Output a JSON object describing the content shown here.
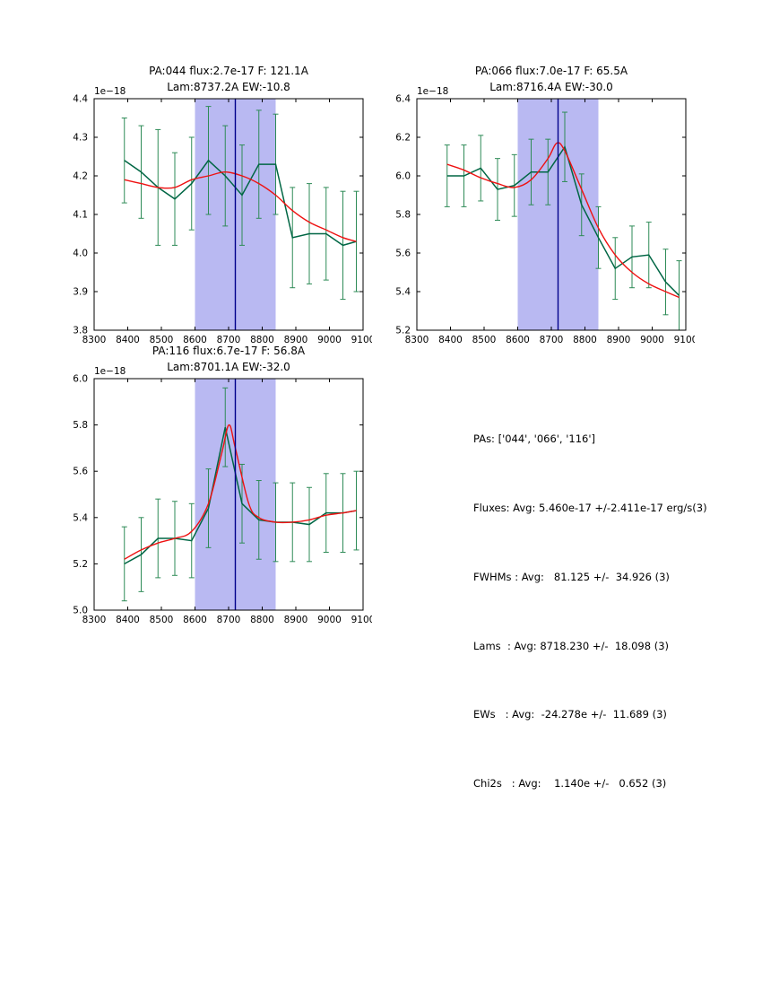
{
  "colors": {
    "background": "#ffffff",
    "data_line": "#006644",
    "error_bar": "#2e8b57",
    "fit_line": "#ee1111",
    "band": "#b9b9f2",
    "vline": "#00008b",
    "axis": "#000000"
  },
  "chart_data": [
    {
      "type": "line",
      "title_line1": "PA:044 flux:2.7e-17 F: 121.1A",
      "title_line2": "Lam:8737.2A EW:-10.8",
      "offset_label": "1e−18",
      "xlim": [
        8300,
        9100
      ],
      "ylim": [
        3.8,
        4.4
      ],
      "xticks": [
        "8300",
        "8400",
        "8500",
        "8600",
        "8700",
        "8800",
        "8900",
        "9000",
        "9100"
      ],
      "yticks": [
        "3.8",
        "3.9",
        "4.0",
        "4.1",
        "4.2",
        "4.3",
        "4.4"
      ],
      "band": [
        8600,
        8840
      ],
      "vline": 8720,
      "series": [
        {
          "name": "spectrum-data",
          "x": [
            8390,
            8440,
            8490,
            8540,
            8590,
            8640,
            8690,
            8740,
            8790,
            8840,
            8890,
            8940,
            8990,
            9040,
            9080
          ],
          "y": [
            4.24,
            4.21,
            4.17,
            4.14,
            4.18,
            4.24,
            4.2,
            4.15,
            4.23,
            4.23,
            4.04,
            4.05,
            4.05,
            4.02,
            4.03
          ],
          "err": [
            0.11,
            0.12,
            0.15,
            0.12,
            0.12,
            0.14,
            0.13,
            0.13,
            0.14,
            0.13,
            0.13,
            0.13,
            0.12,
            0.14,
            0.13
          ]
        },
        {
          "name": "gaussian-fit",
          "x": [
            8390,
            8440,
            8490,
            8540,
            8590,
            8640,
            8690,
            8740,
            8790,
            8840,
            8890,
            8940,
            8990,
            9040,
            9080
          ],
          "y": [
            4.19,
            4.18,
            4.17,
            4.17,
            4.19,
            4.2,
            4.21,
            4.2,
            4.18,
            4.15,
            4.11,
            4.08,
            4.06,
            4.04,
            4.03
          ]
        }
      ]
    },
    {
      "type": "line",
      "title_line1": "PA:066 flux:7.0e-17 F: 65.5A",
      "title_line2": "Lam:8716.4A EW:-30.0",
      "offset_label": "1e−18",
      "xlim": [
        8300,
        9100
      ],
      "ylim": [
        5.2,
        6.4
      ],
      "xticks": [
        "8300",
        "8400",
        "8500",
        "8600",
        "8700",
        "8800",
        "8900",
        "9000",
        "9100"
      ],
      "yticks": [
        "5.2",
        "5.4",
        "5.6",
        "5.8",
        "6.0",
        "6.2",
        "6.4"
      ],
      "band": [
        8600,
        8840
      ],
      "vline": 8720,
      "series": [
        {
          "name": "spectrum-data",
          "x": [
            8390,
            8440,
            8490,
            8540,
            8590,
            8640,
            8690,
            8740,
            8790,
            8840,
            8890,
            8940,
            8990,
            9040,
            9080
          ],
          "y": [
            6.0,
            6.0,
            6.04,
            5.93,
            5.95,
            6.02,
            6.02,
            6.15,
            5.85,
            5.68,
            5.52,
            5.58,
            5.59,
            5.45,
            5.38
          ],
          "err": [
            0.16,
            0.16,
            0.17,
            0.16,
            0.16,
            0.17,
            0.17,
            0.18,
            0.16,
            0.16,
            0.16,
            0.16,
            0.17,
            0.17,
            0.18
          ]
        },
        {
          "name": "gaussian-fit",
          "x": [
            8390,
            8440,
            8490,
            8540,
            8590,
            8640,
            8690,
            8716,
            8740,
            8790,
            8840,
            8890,
            8940,
            8990,
            9040,
            9080
          ],
          "y": [
            6.06,
            6.03,
            5.99,
            5.96,
            5.94,
            5.98,
            6.09,
            6.17,
            6.13,
            5.93,
            5.73,
            5.59,
            5.5,
            5.44,
            5.4,
            5.37
          ]
        }
      ]
    },
    {
      "type": "line",
      "title_line1": "PA:116 flux:6.7e-17 F: 56.8A",
      "title_line2": "Lam:8701.1A EW:-32.0",
      "offset_label": "1e−18",
      "xlim": [
        8300,
        9100
      ],
      "ylim": [
        5.0,
        6.0
      ],
      "xticks": [
        "8300",
        "8400",
        "8500",
        "8600",
        "8700",
        "8800",
        "8900",
        "9000",
        "9100"
      ],
      "yticks": [
        "5.0",
        "5.2",
        "5.4",
        "5.6",
        "5.8",
        "6.0"
      ],
      "band": [
        8600,
        8840
      ],
      "vline": 8720,
      "series": [
        {
          "name": "spectrum-data",
          "x": [
            8390,
            8440,
            8490,
            8540,
            8590,
            8640,
            8690,
            8740,
            8790,
            8840,
            8890,
            8940,
            8990,
            9040,
            9080
          ],
          "y": [
            5.2,
            5.24,
            5.31,
            5.31,
            5.3,
            5.44,
            5.79,
            5.46,
            5.39,
            5.38,
            5.38,
            5.37,
            5.42,
            5.42,
            5.43
          ],
          "err": [
            0.16,
            0.16,
            0.17,
            0.16,
            0.16,
            0.17,
            0.17,
            0.17,
            0.17,
            0.17,
            0.17,
            0.16,
            0.17,
            0.17,
            0.17
          ]
        },
        {
          "name": "gaussian-fit",
          "x": [
            8390,
            8440,
            8490,
            8540,
            8590,
            8640,
            8680,
            8701,
            8720,
            8760,
            8790,
            8840,
            8890,
            8940,
            8990,
            9040,
            9080
          ],
          "y": [
            5.22,
            5.26,
            5.29,
            5.31,
            5.34,
            5.46,
            5.68,
            5.8,
            5.7,
            5.46,
            5.4,
            5.38,
            5.38,
            5.39,
            5.41,
            5.42,
            5.43
          ]
        }
      ]
    }
  ],
  "summary": {
    "lines": [
      "PAs: ['044', '066', '116']",
      "Fluxes: Avg: 5.460e-17 +/-2.411e-17 erg/s(3)",
      "FWHMs : Avg:   81.125 +/-  34.926 (3)",
      "Lams  : Avg: 8718.230 +/-  18.098 (3)",
      "EWs   : Avg:  -24.278e +/-  11.689 (3)",
      "Chi2s   : Avg:    1.140e +/-   0.652 (3)"
    ]
  }
}
